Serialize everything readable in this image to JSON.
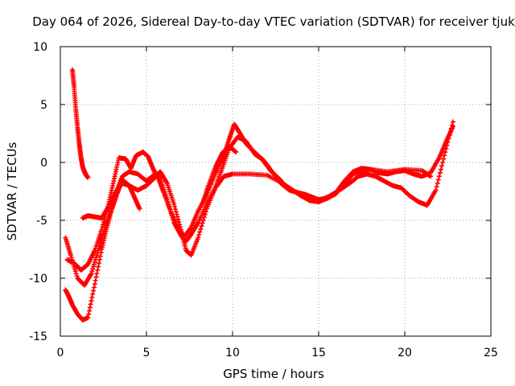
{
  "chart_data": {
    "type": "scatter",
    "title": "Day 064 of 2026, Sidereal Day-to-day VTEC variation (SDTVAR) for receiver tjuk",
    "xlabel": "GPS time / hours",
    "ylabel": "SDTVAR / TECUs",
    "xlim": [
      0,
      25
    ],
    "ylim": [
      -15,
      10
    ],
    "xticks": [
      "0",
      "5",
      "10",
      "15",
      "20",
      "25"
    ],
    "yticks": [
      "-15",
      "-10",
      "-5",
      "0",
      "5",
      "10"
    ],
    "grid": true,
    "marker": "plus",
    "series_color": "#ff0000",
    "series": [
      {
        "x": [
          0.7,
          0.8,
          0.9,
          1.0,
          1.1,
          1.2,
          1.3,
          1.4,
          1.5,
          1.6
        ],
        "y": [
          8.0,
          6.5,
          4.6,
          3.0,
          1.6,
          0.4,
          -0.4,
          -0.8,
          -1.1,
          -1.3
        ]
      },
      {
        "x": [
          0.3,
          0.5,
          0.7,
          1.0,
          1.3,
          1.6,
          2.0,
          2.4,
          2.7,
          3.0,
          3.3,
          3.6,
          4.0,
          4.5,
          5.0,
          5.5,
          5.8,
          6.2,
          6.6,
          7.0,
          7.3,
          7.6,
          8.0,
          8.5,
          9.0,
          9.5,
          10.0,
          11.0,
          12.0,
          13.0,
          13.5,
          14.0,
          14.5,
          15.0,
          15.5,
          16.0,
          16.5,
          17.0,
          17.5,
          18.0,
          19.0,
          20.0,
          21.0,
          21.5
        ],
        "y": [
          -11.0,
          -11.6,
          -12.3,
          -13.1,
          -13.6,
          -13.4,
          -10.5,
          -7.5,
          -5.6,
          -4.0,
          -2.7,
          -1.5,
          -2.0,
          -2.4,
          -2.0,
          -1.3,
          -0.8,
          -1.8,
          -3.6,
          -5.8,
          -7.6,
          -8.0,
          -6.5,
          -4.0,
          -2.2,
          -1.2,
          -1.0,
          -1.0,
          -1.1,
          -1.9,
          -2.4,
          -2.9,
          -3.3,
          -3.4,
          -3.1,
          -2.7,
          -1.9,
          -1.0,
          -0.7,
          -0.6,
          -0.8,
          -0.6,
          -0.7,
          -1.2
        ]
      },
      {
        "x": [
          0.3,
          0.6,
          1.0,
          1.4,
          1.8,
          2.2,
          2.6,
          3.0,
          3.3,
          3.6,
          4.0,
          4.5,
          5.0,
          5.5,
          5.8,
          6.2,
          6.6,
          7.0,
          7.3,
          7.6,
          8.0,
          8.5,
          9.0,
          9.4,
          9.8,
          10.3,
          10.8,
          11.3,
          11.8,
          12.3,
          12.8,
          13.3,
          13.8,
          14.3,
          15.0,
          15.5,
          16.0,
          16.5,
          17.0,
          17.5,
          18.0,
          18.5,
          19.0,
          19.5,
          20.0,
          20.5,
          21.0,
          21.5,
          22.0,
          22.4,
          22.8
        ],
        "y": [
          -6.5,
          -8.0,
          -10.0,
          -10.6,
          -9.6,
          -7.6,
          -5.6,
          -3.8,
          -2.4,
          -1.2,
          -0.8,
          -1.0,
          -1.6,
          -1.0,
          -1.4,
          -3.2,
          -5.2,
          -6.3,
          -6.8,
          -6.2,
          -5.2,
          -3.6,
          -2.2,
          -0.5,
          1.2,
          2.2,
          1.8,
          0.7,
          0.2,
          -0.8,
          -1.8,
          -2.4,
          -2.6,
          -2.8,
          -3.2,
          -3.1,
          -2.6,
          -1.6,
          -0.8,
          -0.5,
          -0.6,
          -0.9,
          -1.0,
          -0.8,
          -0.7,
          -1.0,
          -1.2,
          -0.9,
          0.4,
          1.8,
          3.1
        ]
      },
      {
        "x": [
          0.4,
          0.8,
          1.2,
          1.6,
          2.0,
          2.4,
          2.8,
          3.1,
          3.4,
          3.8,
          4.1,
          4.4,
          4.8,
          5.1,
          5.4,
          5.7,
          6.0,
          6.4,
          6.8,
          7.2,
          7.6,
          8.0,
          8.5,
          9.0,
          9.5,
          9.8,
          10.1,
          10.4,
          10.8,
          11.2,
          11.7,
          12.2,
          12.7,
          13.2,
          13.7,
          14.2,
          15.0,
          15.5,
          16.2,
          16.8,
          17.3,
          17.8,
          18.3,
          18.8,
          19.3,
          19.8,
          20.3,
          20.8,
          21.3,
          21.8,
          22.3,
          22.8
        ],
        "y": [
          -8.4,
          -8.7,
          -9.3,
          -8.8,
          -7.6,
          -5.8,
          -3.6,
          -1.6,
          0.4,
          0.3,
          -0.5,
          0.6,
          0.9,
          0.5,
          -0.6,
          -1.4,
          -2.6,
          -4.2,
          -5.6,
          -6.4,
          -5.6,
          -4.2,
          -2.8,
          -1.0,
          0.6,
          2.0,
          3.3,
          2.6,
          1.6,
          1.0,
          0.3,
          -0.7,
          -1.4,
          -2.2,
          -2.6,
          -2.8,
          -3.3,
          -3.0,
          -2.4,
          -1.8,
          -1.2,
          -1.0,
          -1.2,
          -1.6,
          -2.0,
          -2.2,
          -2.9,
          -3.4,
          -3.7,
          -2.4,
          0.6,
          3.5
        ]
      },
      {
        "x": [
          1.3,
          1.6,
          2.0,
          2.4,
          2.8,
          3.2,
          3.6,
          4.0,
          4.3,
          4.6
        ],
        "y": [
          -4.8,
          -4.6,
          -4.7,
          -4.8,
          -3.8,
          -2.6,
          -1.8,
          -2.0,
          -3.0,
          -4.0
        ]
      },
      {
        "x": [
          8.3,
          8.6,
          9.0,
          9.4,
          9.8,
          10.2
        ],
        "y": [
          -3.4,
          -2.0,
          -0.4,
          0.8,
          1.4,
          0.9
        ]
      }
    ]
  }
}
